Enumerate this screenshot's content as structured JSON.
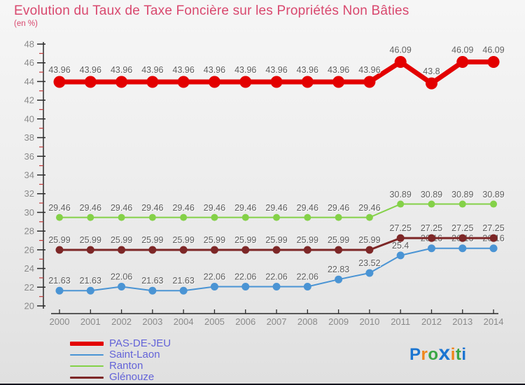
{
  "title": "Evolution du Taux de Taxe Foncière sur les Propriétés Non Bâties",
  "subtitle": "(en %)",
  "chart_data": {
    "type": "line",
    "title": "Evolution du Taux de Taxe Foncière sur les Propriétés Non Bâties",
    "unit_label": "(en %)",
    "x": [
      2000,
      2001,
      2002,
      2003,
      2004,
      2005,
      2006,
      2007,
      2008,
      2009,
      2010,
      2011,
      2012,
      2013,
      2014
    ],
    "ylim": [
      20,
      48
    ],
    "ytick_step": 2,
    "yminor_step": 1,
    "grid": false,
    "legend_position": "bottom-left",
    "point_labels": true,
    "series": [
      {
        "name": "PAS-DE-JEU",
        "color": "#e30000",
        "line_width": 7,
        "marker_radius": 8.5,
        "values": [
          43.96,
          43.96,
          43.96,
          43.96,
          43.96,
          43.96,
          43.96,
          43.96,
          43.96,
          43.96,
          43.96,
          46.09,
          43.8,
          46.09,
          46.09
        ]
      },
      {
        "name": "Saint-Laon",
        "color": "#4a94d4",
        "line_width": 2,
        "marker_radius": 5.5,
        "values": [
          21.63,
          21.63,
          22.06,
          21.63,
          21.63,
          22.06,
          22.06,
          22.06,
          22.06,
          22.83,
          23.52,
          25.4,
          26.16,
          26.16,
          26.16
        ]
      },
      {
        "name": "Ranton",
        "color": "#84d148",
        "line_width": 2,
        "marker_radius": 5,
        "values": [
          29.46,
          29.46,
          29.46,
          29.46,
          29.46,
          29.46,
          29.46,
          29.46,
          29.46,
          29.46,
          29.46,
          30.89,
          30.89,
          30.89,
          30.89
        ]
      },
      {
        "name": "Glénouze",
        "color": "#7d2727",
        "line_width": 3,
        "marker_radius": 5.5,
        "values": [
          25.99,
          25.99,
          25.99,
          25.99,
          25.99,
          25.99,
          25.99,
          25.99,
          25.99,
          25.99,
          25.99,
          27.25,
          27.25,
          27.25,
          27.25
        ]
      }
    ],
    "axis_colors": {
      "axis": "#2a2a2a",
      "minor_tick": "#c23b3b",
      "tick_label": "#8a8a8a",
      "point_label": "#5f5f5f"
    }
  },
  "legend": {
    "items": [
      "PAS-DE-JEU",
      "Saint-Laon",
      "Ranton",
      "Glénouze"
    ]
  },
  "logo": {
    "text": "Proxiti",
    "letters": [
      {
        "ch": "P",
        "color": "#1b75d1",
        "big": false
      },
      {
        "ch": "r",
        "color": "#f08519",
        "big": false
      },
      {
        "ch": "o",
        "color": "#3aa644",
        "big": false
      },
      {
        "ch": "x",
        "color": "#1b75d1",
        "big": true
      },
      {
        "ch": "i",
        "color": "#f08519",
        "big": false
      },
      {
        "ch": "t",
        "color": "#3aa644",
        "big": false
      },
      {
        "ch": "i",
        "color": "#1b75d1",
        "big": false
      }
    ]
  }
}
